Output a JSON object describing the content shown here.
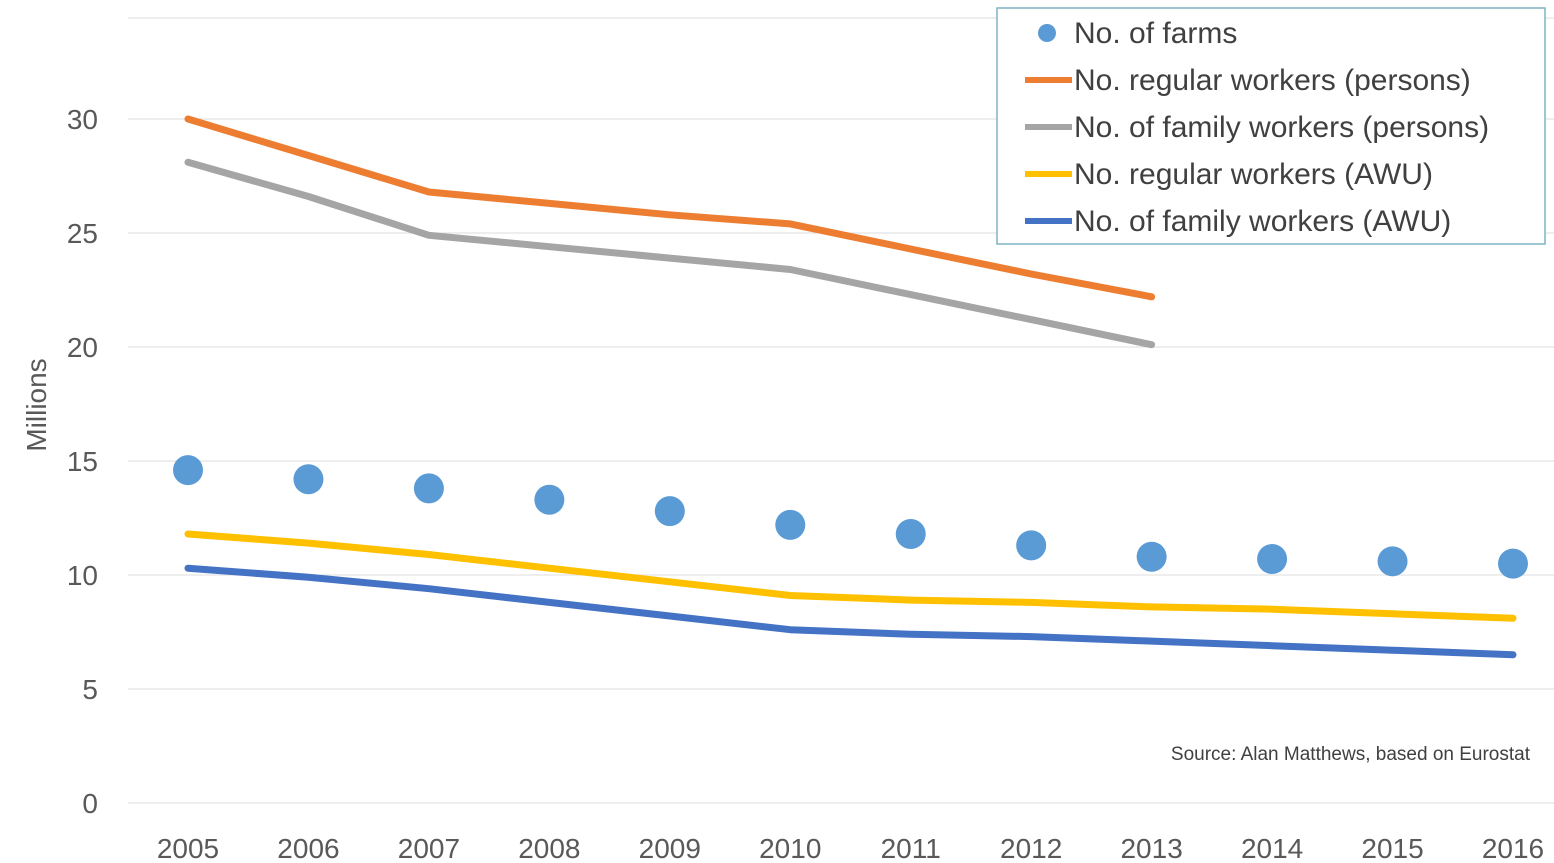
{
  "chart_data": {
    "type": "line",
    "ylabel": "Millions",
    "xlabel": "",
    "ylim": [
      0,
      30
    ],
    "y_ticks": [
      "0",
      "5",
      "10",
      "15",
      "20",
      "25",
      "30"
    ],
    "x": [
      "2005",
      "2006",
      "2007",
      "2008",
      "2009",
      "2010",
      "2011",
      "2012",
      "2013",
      "2014",
      "2015",
      "2016"
    ],
    "grid": "horizontal",
    "legend_position": "top-right",
    "series": [
      {
        "name": "No. of farms",
        "style": "markers",
        "color": "#5B9BD5",
        "values": [
          14.6,
          14.2,
          13.8,
          13.3,
          12.8,
          12.2,
          11.8,
          11.3,
          10.8,
          10.7,
          10.6,
          10.5
        ]
      },
      {
        "name": "No. regular workers (persons)",
        "style": "line",
        "color": "#ED7D31",
        "values": [
          30.0,
          28.4,
          26.8,
          26.3,
          25.8,
          25.4,
          24.3,
          23.2,
          22.2,
          null,
          null,
          null
        ]
      },
      {
        "name": "No. of family workers (persons)",
        "style": "line",
        "color": "#A5A5A5",
        "values": [
          28.1,
          26.6,
          24.9,
          24.4,
          23.9,
          23.4,
          22.3,
          21.2,
          20.1,
          null,
          null,
          null
        ]
      },
      {
        "name": "No. regular workers (AWU)",
        "style": "line",
        "color": "#FFC000",
        "values": [
          11.8,
          11.4,
          10.9,
          10.3,
          9.7,
          9.1,
          8.9,
          8.8,
          8.6,
          8.5,
          8.3,
          8.1
        ]
      },
      {
        "name": "No. of family workers (AWU)",
        "style": "line",
        "color": "#4472C4",
        "values": [
          10.3,
          9.9,
          9.4,
          8.8,
          8.2,
          7.6,
          7.4,
          7.3,
          7.1,
          6.9,
          6.7,
          6.5
        ]
      }
    ],
    "annotation": "Source:  Alan Matthews, based on Eurostat"
  }
}
